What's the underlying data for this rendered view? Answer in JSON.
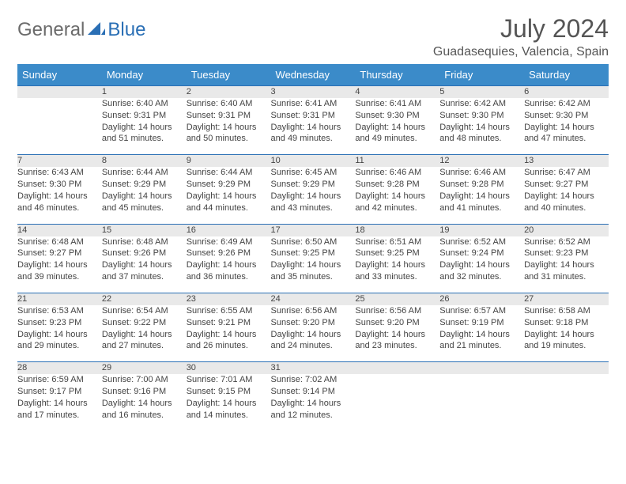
{
  "brand": {
    "part1": "General",
    "part2": "Blue"
  },
  "title": "July 2024",
  "location": "Guadasequies, Valencia, Spain",
  "weekdays": [
    "Sunday",
    "Monday",
    "Tuesday",
    "Wednesday",
    "Thursday",
    "Friday",
    "Saturday"
  ],
  "colors": {
    "header_bg": "#3b8bc9",
    "header_text": "#ffffff",
    "daynum_bg": "#e9e9e9",
    "rule": "#2a6fb5",
    "brand_gray": "#6b6b6b",
    "brand_blue": "#2a6fb5",
    "text": "#444444"
  },
  "fonts": {
    "title_size": 32,
    "location_size": 16,
    "weekday_size": 13,
    "daynum_size": 13,
    "cell_size": 11
  },
  "weeks": [
    [
      null,
      {
        "n": "1",
        "sr": "Sunrise: 6:40 AM",
        "ss": "Sunset: 9:31 PM",
        "dl": "Daylight: 14 hours and 51 minutes."
      },
      {
        "n": "2",
        "sr": "Sunrise: 6:40 AM",
        "ss": "Sunset: 9:31 PM",
        "dl": "Daylight: 14 hours and 50 minutes."
      },
      {
        "n": "3",
        "sr": "Sunrise: 6:41 AM",
        "ss": "Sunset: 9:31 PM",
        "dl": "Daylight: 14 hours and 49 minutes."
      },
      {
        "n": "4",
        "sr": "Sunrise: 6:41 AM",
        "ss": "Sunset: 9:30 PM",
        "dl": "Daylight: 14 hours and 49 minutes."
      },
      {
        "n": "5",
        "sr": "Sunrise: 6:42 AM",
        "ss": "Sunset: 9:30 PM",
        "dl": "Daylight: 14 hours and 48 minutes."
      },
      {
        "n": "6",
        "sr": "Sunrise: 6:42 AM",
        "ss": "Sunset: 9:30 PM",
        "dl": "Daylight: 14 hours and 47 minutes."
      }
    ],
    [
      {
        "n": "7",
        "sr": "Sunrise: 6:43 AM",
        "ss": "Sunset: 9:30 PM",
        "dl": "Daylight: 14 hours and 46 minutes."
      },
      {
        "n": "8",
        "sr": "Sunrise: 6:44 AM",
        "ss": "Sunset: 9:29 PM",
        "dl": "Daylight: 14 hours and 45 minutes."
      },
      {
        "n": "9",
        "sr": "Sunrise: 6:44 AM",
        "ss": "Sunset: 9:29 PM",
        "dl": "Daylight: 14 hours and 44 minutes."
      },
      {
        "n": "10",
        "sr": "Sunrise: 6:45 AM",
        "ss": "Sunset: 9:29 PM",
        "dl": "Daylight: 14 hours and 43 minutes."
      },
      {
        "n": "11",
        "sr": "Sunrise: 6:46 AM",
        "ss": "Sunset: 9:28 PM",
        "dl": "Daylight: 14 hours and 42 minutes."
      },
      {
        "n": "12",
        "sr": "Sunrise: 6:46 AM",
        "ss": "Sunset: 9:28 PM",
        "dl": "Daylight: 14 hours and 41 minutes."
      },
      {
        "n": "13",
        "sr": "Sunrise: 6:47 AM",
        "ss": "Sunset: 9:27 PM",
        "dl": "Daylight: 14 hours and 40 minutes."
      }
    ],
    [
      {
        "n": "14",
        "sr": "Sunrise: 6:48 AM",
        "ss": "Sunset: 9:27 PM",
        "dl": "Daylight: 14 hours and 39 minutes."
      },
      {
        "n": "15",
        "sr": "Sunrise: 6:48 AM",
        "ss": "Sunset: 9:26 PM",
        "dl": "Daylight: 14 hours and 37 minutes."
      },
      {
        "n": "16",
        "sr": "Sunrise: 6:49 AM",
        "ss": "Sunset: 9:26 PM",
        "dl": "Daylight: 14 hours and 36 minutes."
      },
      {
        "n": "17",
        "sr": "Sunrise: 6:50 AM",
        "ss": "Sunset: 9:25 PM",
        "dl": "Daylight: 14 hours and 35 minutes."
      },
      {
        "n": "18",
        "sr": "Sunrise: 6:51 AM",
        "ss": "Sunset: 9:25 PM",
        "dl": "Daylight: 14 hours and 33 minutes."
      },
      {
        "n": "19",
        "sr": "Sunrise: 6:52 AM",
        "ss": "Sunset: 9:24 PM",
        "dl": "Daylight: 14 hours and 32 minutes."
      },
      {
        "n": "20",
        "sr": "Sunrise: 6:52 AM",
        "ss": "Sunset: 9:23 PM",
        "dl": "Daylight: 14 hours and 31 minutes."
      }
    ],
    [
      {
        "n": "21",
        "sr": "Sunrise: 6:53 AM",
        "ss": "Sunset: 9:23 PM",
        "dl": "Daylight: 14 hours and 29 minutes."
      },
      {
        "n": "22",
        "sr": "Sunrise: 6:54 AM",
        "ss": "Sunset: 9:22 PM",
        "dl": "Daylight: 14 hours and 27 minutes."
      },
      {
        "n": "23",
        "sr": "Sunrise: 6:55 AM",
        "ss": "Sunset: 9:21 PM",
        "dl": "Daylight: 14 hours and 26 minutes."
      },
      {
        "n": "24",
        "sr": "Sunrise: 6:56 AM",
        "ss": "Sunset: 9:20 PM",
        "dl": "Daylight: 14 hours and 24 minutes."
      },
      {
        "n": "25",
        "sr": "Sunrise: 6:56 AM",
        "ss": "Sunset: 9:20 PM",
        "dl": "Daylight: 14 hours and 23 minutes."
      },
      {
        "n": "26",
        "sr": "Sunrise: 6:57 AM",
        "ss": "Sunset: 9:19 PM",
        "dl": "Daylight: 14 hours and 21 minutes."
      },
      {
        "n": "27",
        "sr": "Sunrise: 6:58 AM",
        "ss": "Sunset: 9:18 PM",
        "dl": "Daylight: 14 hours and 19 minutes."
      }
    ],
    [
      {
        "n": "28",
        "sr": "Sunrise: 6:59 AM",
        "ss": "Sunset: 9:17 PM",
        "dl": "Daylight: 14 hours and 17 minutes."
      },
      {
        "n": "29",
        "sr": "Sunrise: 7:00 AM",
        "ss": "Sunset: 9:16 PM",
        "dl": "Daylight: 14 hours and 16 minutes."
      },
      {
        "n": "30",
        "sr": "Sunrise: 7:01 AM",
        "ss": "Sunset: 9:15 PM",
        "dl": "Daylight: 14 hours and 14 minutes."
      },
      {
        "n": "31",
        "sr": "Sunrise: 7:02 AM",
        "ss": "Sunset: 9:14 PM",
        "dl": "Daylight: 14 hours and 12 minutes."
      },
      null,
      null,
      null
    ]
  ]
}
